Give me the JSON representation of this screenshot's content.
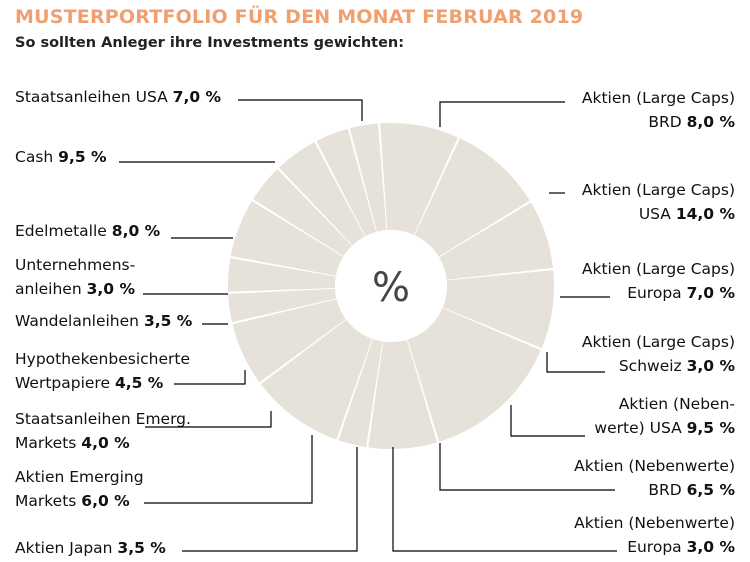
{
  "title": "MUSTERPORTFOLIO FÜR DEN MONAT FEBRUAR 2019",
  "subtitle": "So sollten Anleger ihre Investments gewichten:",
  "center_label": "%",
  "colors": {
    "slice": "#e6e2d9",
    "separator": "#ffffff",
    "title": "#f0a070",
    "line": "#000000"
  },
  "chart_data": {
    "type": "pie",
    "title": "MUSTERPORTFOLIO FÜR DEN MONAT FEBRUAR 2019",
    "subtitle": "So sollten Anleger ihre Investments gewichten:",
    "unit": "%",
    "slices": [
      {
        "lines": [
          "Aktien (Large Caps)",
          "BRD"
        ],
        "value": 8.0,
        "value_text": "8,0 %"
      },
      {
        "lines": [
          "Aktien (Large Caps)",
          "USA"
        ],
        "value": 14.0,
        "value_text": "14,0 %"
      },
      {
        "lines": [
          "Aktien (Large Caps)",
          "Europa"
        ],
        "value": 7.0,
        "value_text": "7,0  %"
      },
      {
        "lines": [
          "Aktien (Large Caps)",
          "Schweiz"
        ],
        "value": 3.0,
        "value_text": "3,0 %"
      },
      {
        "lines": [
          "Aktien (Neben-",
          "werte) USA"
        ],
        "value": 9.5,
        "value_text": "9,5 %"
      },
      {
        "lines": [
          "Aktien (Nebenwerte)",
          "BRD"
        ],
        "value": 6.5,
        "value_text": "6,5 %"
      },
      {
        "lines": [
          "Aktien (Nebenwerte)",
          "Europa"
        ],
        "value": 3.0,
        "value_text": "3,0 %"
      },
      {
        "lines": [
          "Aktien Japan"
        ],
        "value": 3.5,
        "value_text": "3,5 %"
      },
      {
        "lines": [
          "Aktien Emerging",
          "Markets"
        ],
        "value": 6.0,
        "value_text": "6,0 %"
      },
      {
        "lines": [
          "Staatsanleihen Emerg.",
          "Markets"
        ],
        "value": 4.0,
        "value_text": "4,0 %"
      },
      {
        "lines": [
          "Hypothekenbesicherte",
          "Wertpapiere"
        ],
        "value": 4.5,
        "value_text": "4,5 %"
      },
      {
        "lines": [
          "Wandelanleihen"
        ],
        "value": 3.5,
        "value_text": "3,5 %"
      },
      {
        "lines": [
          "Unternehmens-",
          "anleihen"
        ],
        "value": 3.0,
        "value_text": "3,0 %"
      },
      {
        "lines": [
          "Edelmetalle"
        ],
        "value": 8.0,
        "value_text": "8,0 %"
      },
      {
        "lines": [
          "Cash"
        ],
        "value": 9.5,
        "value_text": "9,5 %"
      },
      {
        "lines": [
          "Staatsanleihen USA"
        ],
        "value": 7.0,
        "value_text": "7,0 %"
      }
    ]
  }
}
